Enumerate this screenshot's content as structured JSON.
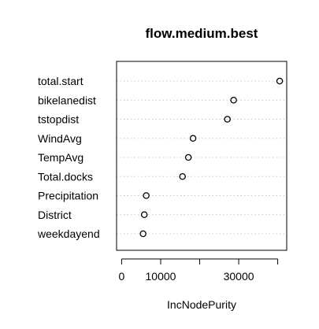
{
  "chart_data": {
    "type": "scatter",
    "title": "flow.medium.best",
    "xlabel": "IncNodePurity",
    "ylabel": "",
    "categories": [
      "total.start",
      "bikelanedist",
      "tstopdist",
      "WindAvg",
      "TempAvg",
      "Total.docks",
      "Precipitation",
      "District",
      "weekdayend"
    ],
    "values": [
      40500,
      28700,
      27100,
      18300,
      17100,
      15600,
      6300,
      5800,
      5500
    ],
    "xlim": [
      -1300,
      42300
    ],
    "x_ticks": [
      0,
      10000,
      20000,
      30000,
      40000
    ],
    "x_tick_labels": [
      "0",
      "10000",
      "",
      "30000",
      ""
    ],
    "grid": "dotted-horizontal",
    "legend": "none"
  }
}
